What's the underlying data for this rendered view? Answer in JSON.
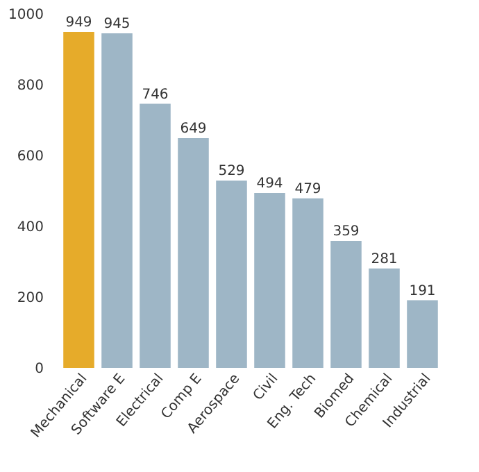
{
  "chart_data": {
    "type": "bar",
    "categories": [
      "Mechanical",
      "Software E",
      "Electrical",
      "Comp E",
      "Aerospace",
      "Civil",
      "Eng. Tech",
      "Biomed",
      "Chemical",
      "Industrial"
    ],
    "values": [
      949,
      945,
      746,
      649,
      529,
      494,
      479,
      359,
      281,
      191
    ],
    "colors": [
      "#e6ab2a",
      "#9eb6c6",
      "#9eb6c6",
      "#9eb6c6",
      "#9eb6c6",
      "#9eb6c6",
      "#9eb6c6",
      "#9eb6c6",
      "#9eb6c6",
      "#9eb6c6"
    ],
    "ylim": [
      0,
      1000
    ],
    "yticks": [
      0,
      200,
      400,
      600,
      800,
      1000
    ],
    "grid": false,
    "data_labels": true
  }
}
